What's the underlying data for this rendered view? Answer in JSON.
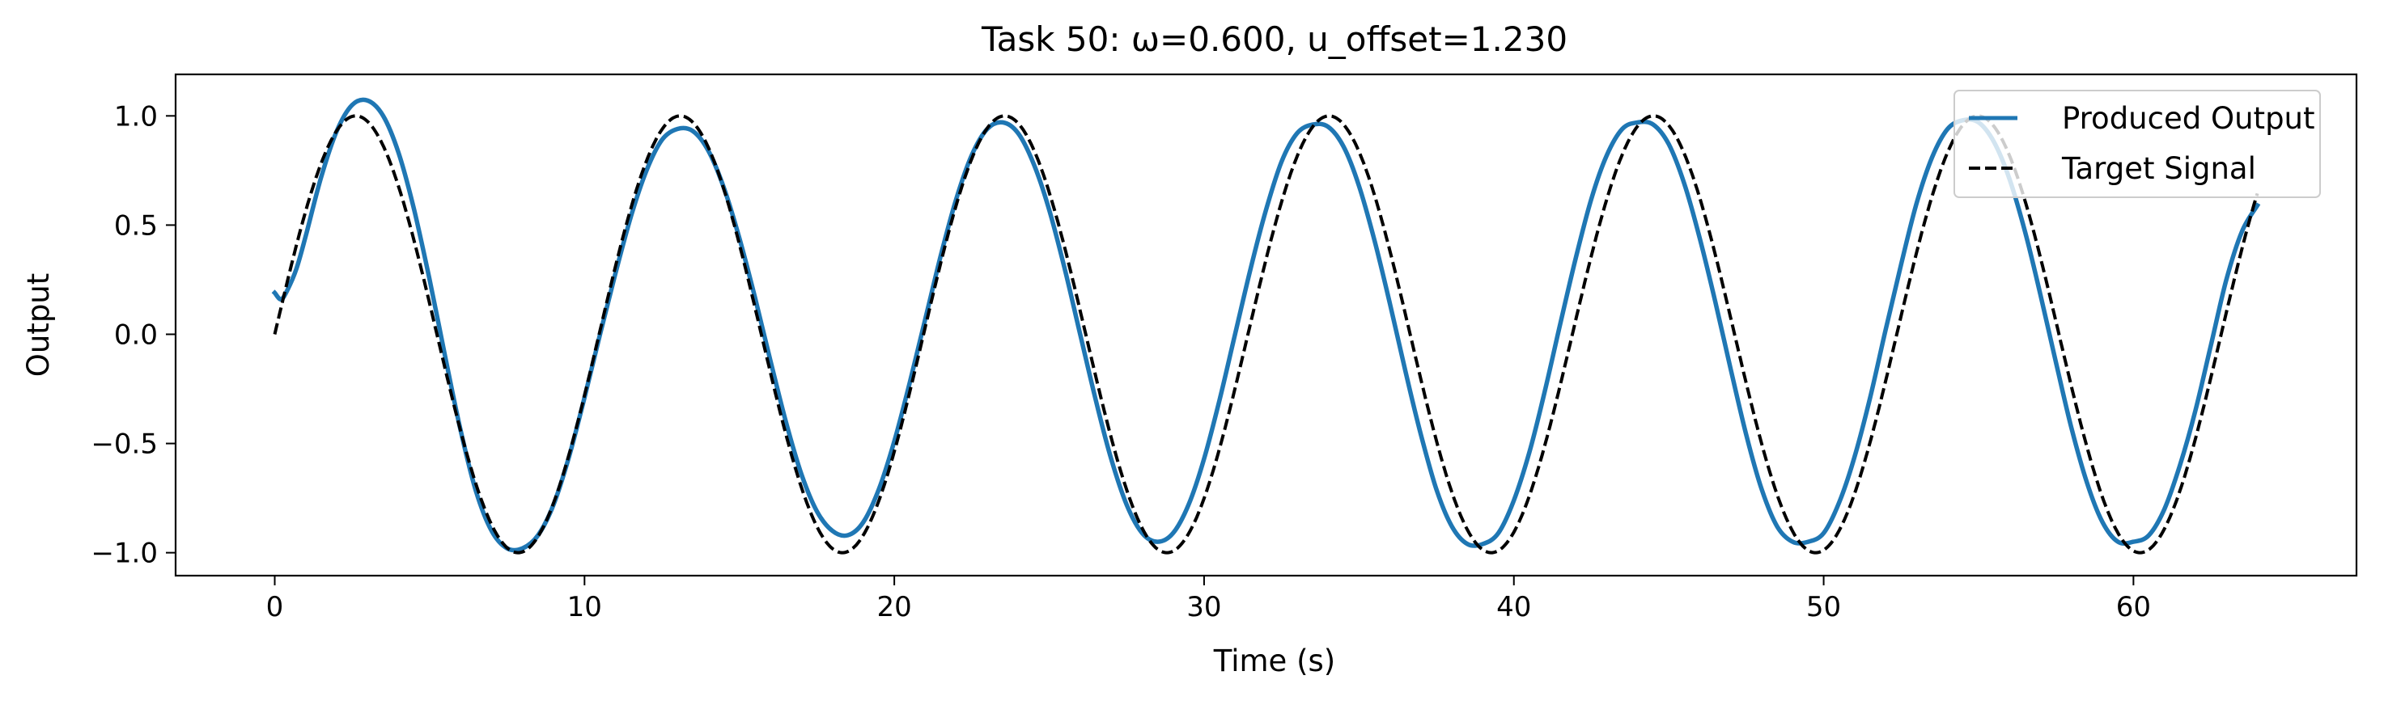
{
  "chart_data": {
    "type": "line",
    "title": "Task 50: ω=0.600, u_offset=1.230",
    "xlabel": "Time (s)",
    "ylabel": "Output",
    "xlim": [
      -3.2,
      67.2
    ],
    "ylim": [
      -1.105,
      1.19
    ],
    "xticks": [
      0,
      10,
      20,
      30,
      40,
      50,
      60
    ],
    "xtick_labels": [
      "0",
      "10",
      "20",
      "30",
      "40",
      "50",
      "60"
    ],
    "yticks": [
      -1.0,
      -0.5,
      0.0,
      0.5,
      1.0
    ],
    "ytick_labels": [
      "−1.0",
      "−0.5",
      "0.0",
      "0.5",
      "1.0"
    ],
    "grid": false,
    "legend_position": "top-right",
    "series": [
      {
        "name": "Produced Output",
        "color": "#1f77b4",
        "style": "solid",
        "points": [
          [
            0.0,
            0.19
          ],
          [
            0.2,
            0.16
          ],
          [
            0.4,
            0.2
          ],
          [
            0.7,
            0.3
          ],
          [
            1.0,
            0.45
          ],
          [
            1.5,
            0.72
          ],
          [
            2.0,
            0.93
          ],
          [
            2.5,
            1.05
          ],
          [
            3.0,
            1.07
          ],
          [
            3.5,
            1.0
          ],
          [
            4.0,
            0.83
          ],
          [
            4.5,
            0.57
          ],
          [
            5.0,
            0.25
          ],
          [
            5.5,
            -0.1
          ],
          [
            6.0,
            -0.44
          ],
          [
            6.5,
            -0.72
          ],
          [
            7.0,
            -0.9
          ],
          [
            7.5,
            -0.98
          ],
          [
            8.0,
            -0.98
          ],
          [
            8.5,
            -0.92
          ],
          [
            9.0,
            -0.78
          ],
          [
            9.5,
            -0.56
          ],
          [
            10.0,
            -0.29
          ],
          [
            10.5,
            0.0
          ],
          [
            11.0,
            0.28
          ],
          [
            11.5,
            0.54
          ],
          [
            12.0,
            0.75
          ],
          [
            12.5,
            0.89
          ],
          [
            13.0,
            0.94
          ],
          [
            13.5,
            0.93
          ],
          [
            14.0,
            0.84
          ],
          [
            14.5,
            0.67
          ],
          [
            15.0,
            0.44
          ],
          [
            15.5,
            0.17
          ],
          [
            16.0,
            -0.12
          ],
          [
            16.5,
            -0.4
          ],
          [
            17.0,
            -0.64
          ],
          [
            17.5,
            -0.81
          ],
          [
            18.0,
            -0.9
          ],
          [
            18.5,
            -0.92
          ],
          [
            19.0,
            -0.86
          ],
          [
            19.5,
            -0.71
          ],
          [
            20.0,
            -0.49
          ],
          [
            20.5,
            -0.22
          ],
          [
            21.0,
            0.07
          ],
          [
            21.5,
            0.36
          ],
          [
            22.0,
            0.62
          ],
          [
            22.5,
            0.82
          ],
          [
            23.0,
            0.94
          ],
          [
            23.5,
            0.97
          ],
          [
            24.0,
            0.92
          ],
          [
            24.5,
            0.78
          ],
          [
            25.0,
            0.57
          ],
          [
            25.5,
            0.3
          ],
          [
            26.0,
            0.0
          ],
          [
            26.5,
            -0.3
          ],
          [
            27.0,
            -0.57
          ],
          [
            27.5,
            -0.78
          ],
          [
            28.0,
            -0.91
          ],
          [
            28.5,
            -0.95
          ],
          [
            29.0,
            -0.91
          ],
          [
            29.5,
            -0.78
          ],
          [
            30.0,
            -0.57
          ],
          [
            30.5,
            -0.3
          ],
          [
            31.0,
            0.0
          ],
          [
            31.5,
            0.3
          ],
          [
            32.0,
            0.57
          ],
          [
            32.5,
            0.79
          ],
          [
            33.0,
            0.92
          ],
          [
            33.5,
            0.96
          ],
          [
            34.0,
            0.95
          ],
          [
            34.5,
            0.86
          ],
          [
            35.0,
            0.68
          ],
          [
            35.5,
            0.43
          ],
          [
            36.0,
            0.14
          ],
          [
            36.5,
            -0.17
          ],
          [
            37.0,
            -0.46
          ],
          [
            37.5,
            -0.71
          ],
          [
            38.0,
            -0.88
          ],
          [
            38.5,
            -0.96
          ],
          [
            39.0,
            -0.96
          ],
          [
            39.5,
            -0.91
          ],
          [
            40.0,
            -0.76
          ],
          [
            40.5,
            -0.54
          ],
          [
            41.0,
            -0.26
          ],
          [
            41.5,
            0.05
          ],
          [
            42.0,
            0.35
          ],
          [
            42.5,
            0.62
          ],
          [
            43.0,
            0.82
          ],
          [
            43.5,
            0.94
          ],
          [
            44.0,
            0.97
          ],
          [
            44.5,
            0.96
          ],
          [
            45.0,
            0.87
          ],
          [
            45.5,
            0.69
          ],
          [
            46.0,
            0.44
          ],
          [
            46.5,
            0.15
          ],
          [
            47.0,
            -0.16
          ],
          [
            47.5,
            -0.46
          ],
          [
            48.0,
            -0.71
          ],
          [
            48.5,
            -0.88
          ],
          [
            49.0,
            -0.95
          ],
          [
            49.5,
            -0.95
          ],
          [
            50.0,
            -0.91
          ],
          [
            50.5,
            -0.77
          ],
          [
            51.0,
            -0.56
          ],
          [
            51.5,
            -0.29
          ],
          [
            52.0,
            0.02
          ],
          [
            52.5,
            0.32
          ],
          [
            53.0,
            0.6
          ],
          [
            53.5,
            0.81
          ],
          [
            54.0,
            0.94
          ],
          [
            54.5,
            0.98
          ],
          [
            55.0,
            0.97
          ],
          [
            55.5,
            0.88
          ],
          [
            56.0,
            0.71
          ],
          [
            56.5,
            0.47
          ],
          [
            57.0,
            0.18
          ],
          [
            57.5,
            -0.13
          ],
          [
            58.0,
            -0.43
          ],
          [
            58.5,
            -0.68
          ],
          [
            59.0,
            -0.86
          ],
          [
            59.5,
            -0.95
          ],
          [
            60.0,
            -0.95
          ],
          [
            60.5,
            -0.92
          ],
          [
            61.0,
            -0.8
          ],
          [
            61.5,
            -0.6
          ],
          [
            62.0,
            -0.35
          ],
          [
            62.5,
            -0.05
          ],
          [
            63.0,
            0.25
          ],
          [
            63.5,
            0.47
          ],
          [
            64.0,
            0.59
          ]
        ]
      },
      {
        "name": "Target Signal",
        "color": "#000000",
        "style": "dashed",
        "function": "sin(0.6 * t)",
        "x_range": [
          0,
          64
        ]
      }
    ]
  }
}
